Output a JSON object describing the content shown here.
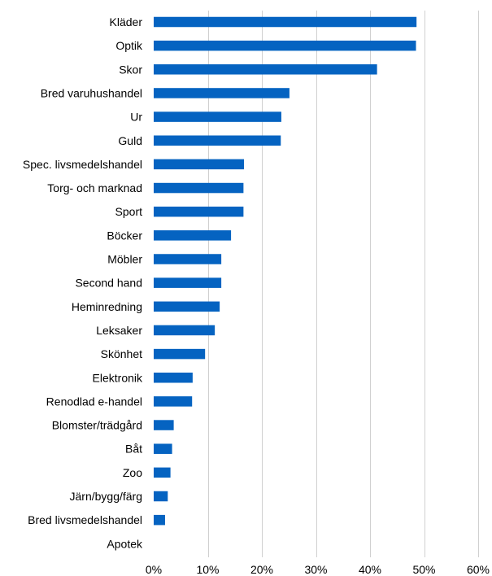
{
  "chart_data": {
    "type": "bar",
    "orientation": "horizontal",
    "categories": [
      "Kläder",
      "Optik",
      "Skor",
      "Bred varuhushandel",
      "Ur",
      "Guld",
      "Spec. livsmedelshandel",
      "Torg- och marknad",
      "Sport",
      "Böcker",
      "Möbler",
      "Second hand",
      "Heminredning",
      "Leksaker",
      "Skönhet",
      "Elektronik",
      "Renodlad e-handel",
      "Blomster/trädgård",
      "Båt",
      "Zoo",
      "Järn/bygg/färg",
      "Bred livsmedelshandel",
      "Apotek"
    ],
    "values": [
      48.6,
      48.5,
      41.3,
      25.1,
      23.6,
      23.5,
      16.7,
      16.6,
      16.6,
      14.3,
      12.5,
      12.5,
      12.2,
      11.3,
      9.5,
      7.2,
      7.1,
      3.7,
      3.4,
      3.1,
      2.6,
      2.1,
      0
    ],
    "xlim": [
      0,
      60
    ],
    "xticks": [
      0,
      10,
      20,
      30,
      40,
      50,
      60
    ],
    "tick_labels": [
      "0%",
      "10%",
      "20%",
      "30%",
      "40%",
      "50%",
      "60%"
    ],
    "unit": "%",
    "grid": "vertical",
    "bar_color": "#0563c1",
    "grid_color": "#d0d0d0",
    "title": "",
    "xlabel": "",
    "ylabel": ""
  }
}
